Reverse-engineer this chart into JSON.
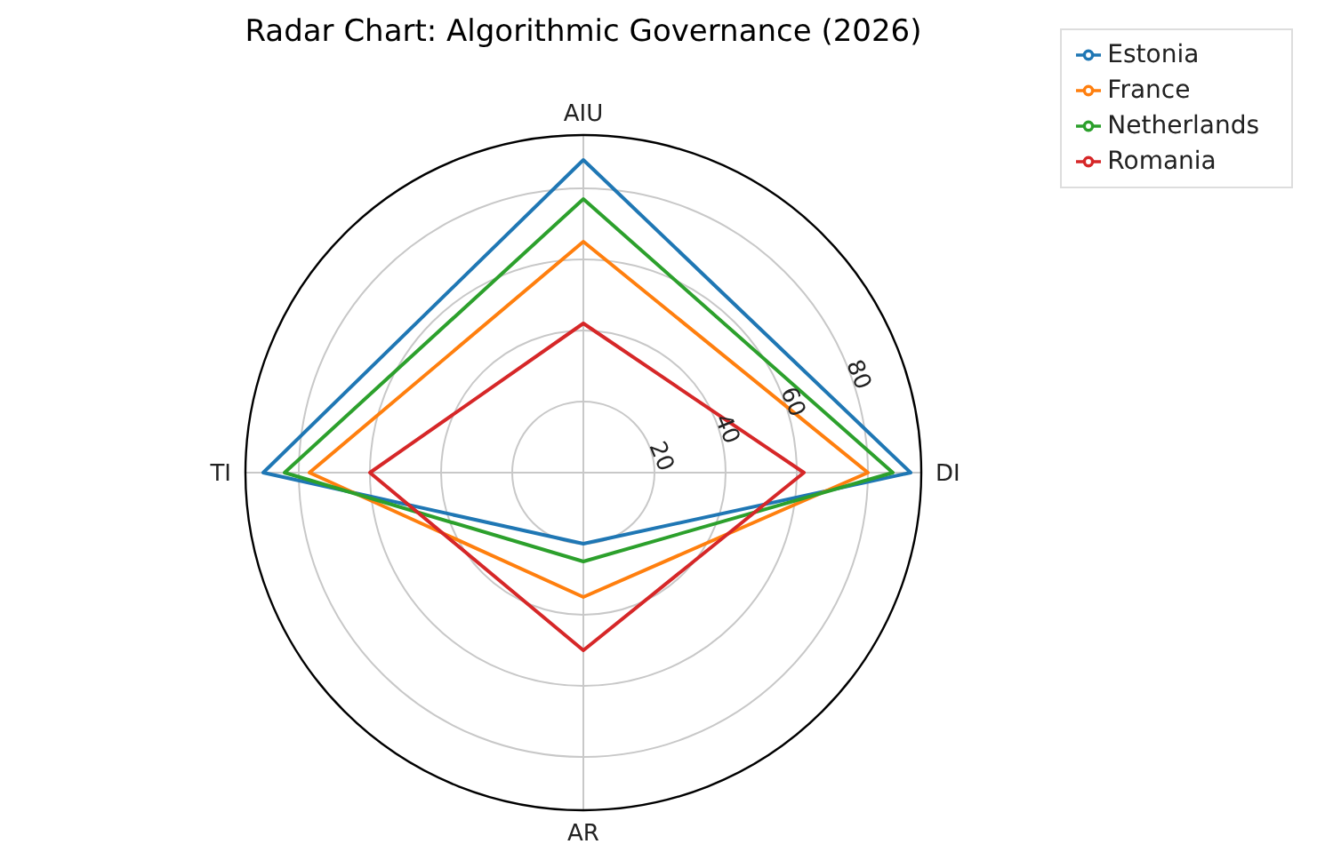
{
  "chart_data": {
    "type": "radar",
    "title": "Radar Chart: Algorithmic Governance (2026)",
    "categories": [
      "AIU",
      "DI",
      "AR",
      "TI"
    ],
    "series": [
      {
        "name": "Estonia",
        "color": "#1f77b4",
        "values": [
          88,
          92,
          20,
          90
        ]
      },
      {
        "name": "France",
        "color": "#ff7f0e",
        "values": [
          65,
          80,
          35,
          77
        ]
      },
      {
        "name": "Netherlands",
        "color": "#2ca02c",
        "values": [
          77,
          87,
          25,
          84
        ]
      },
      {
        "name": "Romania",
        "color": "#d62728",
        "values": [
          42,
          62,
          50,
          60
        ]
      }
    ],
    "ylim": [
      0,
      95
    ],
    "yticks": [
      20,
      40,
      60,
      80
    ],
    "grid": true,
    "legend": "top right"
  }
}
